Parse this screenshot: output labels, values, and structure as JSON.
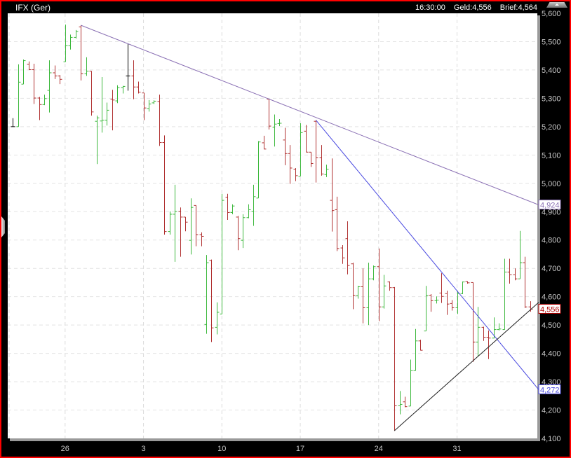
{
  "header": {
    "title": "IFX (Ger)",
    "time": "16:30:00",
    "bid": "Geld:4,556",
    "ask": "Brief:4,564"
  },
  "chart_data": {
    "type": "ohlc",
    "ylim": [
      4100,
      5600
    ],
    "y_ticks": [
      "5,600",
      "5,500",
      "5,400",
      "5,300",
      "5,200",
      "5,100",
      "5,000",
      "4,900",
      "4,800",
      "4,700",
      "4,600",
      "4,500",
      "4,400",
      "4,300",
      "4,200",
      "4,100"
    ],
    "y_tick_values": [
      5600,
      5500,
      5400,
      5300,
      5200,
      5100,
      5000,
      4900,
      4800,
      4700,
      4600,
      4500,
      4400,
      4300,
      4200,
      4100
    ],
    "x_ticks": [
      {
        "label": "26",
        "bar": 10
      },
      {
        "label": "3",
        "bar": 25
      },
      {
        "label": "10",
        "bar": 40
      },
      {
        "label": "17",
        "bar": 55
      },
      {
        "label": "24",
        "bar": 70
      },
      {
        "label": "31",
        "bar": 85
      }
    ],
    "grid": true,
    "colors": {
      "up": "#3cb83c",
      "down": "#b03030",
      "unchanged": "#000000"
    },
    "bars_ohlc": [
      [
        5200,
        5230,
        5200,
        5200
      ],
      [
        5200,
        5420,
        5200,
        5357
      ],
      [
        5350,
        5437,
        5350,
        5433
      ],
      [
        5420,
        5430,
        5400,
        5401
      ],
      [
        5401,
        5422,
        5280,
        5301
      ],
      [
        5301,
        5305,
        5223,
        5278
      ],
      [
        5278,
        5313,
        5276,
        5299
      ],
      [
        5328,
        5434,
        5250,
        5390
      ],
      [
        5390,
        5416,
        5368,
        5379
      ],
      [
        5379,
        5382,
        5350,
        5367
      ],
      [
        5429,
        5560,
        5429,
        5486
      ],
      [
        5486,
        5525,
        5472,
        5515
      ],
      [
        5515,
        5541,
        5511,
        5536
      ],
      [
        5552,
        5558,
        5363,
        5387
      ],
      [
        5387,
        5445,
        5379,
        5396
      ],
      [
        5396,
        5396,
        5239,
        5252
      ],
      [
        5219,
        5239,
        5068,
        5231
      ],
      [
        5220,
        5375,
        5179,
        5223
      ],
      [
        5223,
        5285,
        5204,
        5258
      ],
      [
        5297,
        5330,
        5187,
        5294
      ],
      [
        5291,
        5346,
        5283,
        5338
      ],
      [
        5338,
        5344,
        5317,
        5342
      ],
      [
        5379,
        5492,
        5327,
        5379
      ],
      [
        5379,
        5434,
        5297,
        5340
      ],
      [
        5340,
        5359,
        5317,
        5322
      ],
      [
        5319,
        5319,
        5223,
        5266
      ],
      [
        5264,
        5294,
        5253,
        5280
      ],
      [
        5284,
        5293,
        5280,
        5290
      ],
      [
        5289,
        5313,
        5132,
        5144
      ],
      [
        5144,
        5169,
        4819,
        4830
      ],
      [
        4830,
        4901,
        4819,
        4891
      ],
      [
        4891,
        4995,
        4723,
        4901
      ],
      [
        4901,
        4915,
        4741,
        4881
      ],
      [
        4881,
        4881,
        4831,
        4863
      ],
      [
        4799,
        4947,
        4749,
        4915
      ],
      [
        4922,
        4922,
        4778,
        4819
      ],
      [
        4819,
        4827,
        4778,
        4813
      ],
      [
        4502,
        4747,
        4469,
        4720
      ],
      [
        4728,
        4731,
        4440,
        4490
      ],
      [
        4492,
        4580,
        4467,
        4545
      ],
      [
        4539,
        4963,
        4539,
        4940
      ],
      [
        4951,
        4963,
        4871,
        4897
      ],
      [
        4897,
        4926,
        4891,
        4920
      ],
      [
        4881,
        4885,
        4764,
        4805
      ],
      [
        4799,
        4891,
        4772,
        4879
      ],
      [
        4879,
        4926,
        4877,
        4907
      ],
      [
        4901,
        4995,
        4850,
        4953
      ],
      [
        4948,
        5149,
        4948,
        5146
      ],
      [
        5143,
        5168,
        5120,
        5121
      ],
      [
        5297,
        5297,
        5190,
        5202
      ],
      [
        5198,
        5243,
        5130,
        5209
      ],
      [
        5211,
        5227,
        5202,
        5212
      ],
      [
        5153,
        5196,
        5064,
        5105
      ],
      [
        5105,
        5135,
        4998,
        5054
      ],
      [
        5050,
        5054,
        5008,
        5027
      ],
      [
        5025,
        5212,
        5025,
        5179
      ],
      [
        5184,
        5206,
        5110,
        5110
      ],
      [
        5110,
        5110,
        5058,
        5070
      ],
      [
        5219,
        5223,
        5003,
        5091
      ],
      [
        5091,
        5135,
        5027,
        5033
      ],
      [
        5031,
        5066,
        5022,
        5050
      ],
      [
        4940,
        5088,
        4830,
        4904
      ],
      [
        4907,
        4953,
        4761,
        4770
      ],
      [
        4772,
        4782,
        4716,
        4737
      ],
      [
        4805,
        4866,
        4679,
        4710
      ],
      [
        4716,
        4720,
        4556,
        4605
      ],
      [
        4605,
        4638,
        4593,
        4635
      ],
      [
        4635,
        4700,
        4506,
        4561
      ],
      [
        4561,
        4720,
        4500,
        4663
      ],
      [
        4663,
        4710,
        4658,
        4706
      ],
      [
        4706,
        4770,
        4514,
        4564
      ],
      [
        4564,
        4677,
        4558,
        4638
      ],
      [
        4652,
        4654,
        4621,
        4632
      ],
      [
        4632,
        4634,
        4127,
        4215
      ],
      [
        4215,
        4267,
        4185,
        4220
      ],
      [
        4229,
        4247,
        4210,
        4212
      ],
      [
        4214,
        4378,
        4214,
        4339
      ],
      [
        4339,
        4486,
        4339,
        4444
      ],
      [
        4444,
        4448,
        4410,
        4411
      ],
      [
        4479,
        4638,
        4479,
        4605
      ],
      [
        4605,
        4609,
        4547,
        4586
      ],
      [
        4586,
        4601,
        4576,
        4588
      ],
      [
        4613,
        4683,
        4578,
        4601
      ],
      [
        4611,
        4621,
        4536,
        4574
      ],
      [
        4576,
        4588,
        4551,
        4561
      ],
      [
        4561,
        4621,
        4539,
        4611
      ],
      [
        4611,
        4654,
        4609,
        4652
      ],
      [
        4654,
        4654,
        4646,
        4649
      ],
      [
        4650,
        4650,
        4370,
        4440
      ],
      [
        4440,
        4564,
        4391,
        4492
      ],
      [
        4492,
        4494,
        4444,
        4457
      ],
      [
        4457,
        4481,
        4380,
        4454
      ],
      [
        4454,
        4527,
        4453,
        4484
      ],
      [
        4484,
        4506,
        4481,
        4486
      ],
      [
        4484,
        4734,
        4484,
        4687
      ],
      [
        4687,
        4734,
        4646,
        4677
      ],
      [
        4677,
        4700,
        4658,
        4663
      ],
      [
        4663,
        4832,
        4663,
        4720
      ],
      [
        4720,
        4741,
        4560,
        4564
      ],
      [
        4564,
        4584,
        4547,
        4556
      ]
    ],
    "trendlines": [
      {
        "from_bar": 13,
        "from_price": 5558,
        "end_price": 4924,
        "end_label": "4,924",
        "color": "#8a70b4"
      },
      {
        "from_bar": 58,
        "from_price": 5223,
        "end_price": 4272,
        "end_label": "4,272",
        "color": "#4848e0"
      },
      {
        "from_bar": 73,
        "from_price": 4127,
        "end_price": 4580,
        "end_label": "",
        "color": "#202020"
      }
    ],
    "last_price": {
      "value": 4556,
      "label": "4,556",
      "color": "#b00000"
    }
  }
}
